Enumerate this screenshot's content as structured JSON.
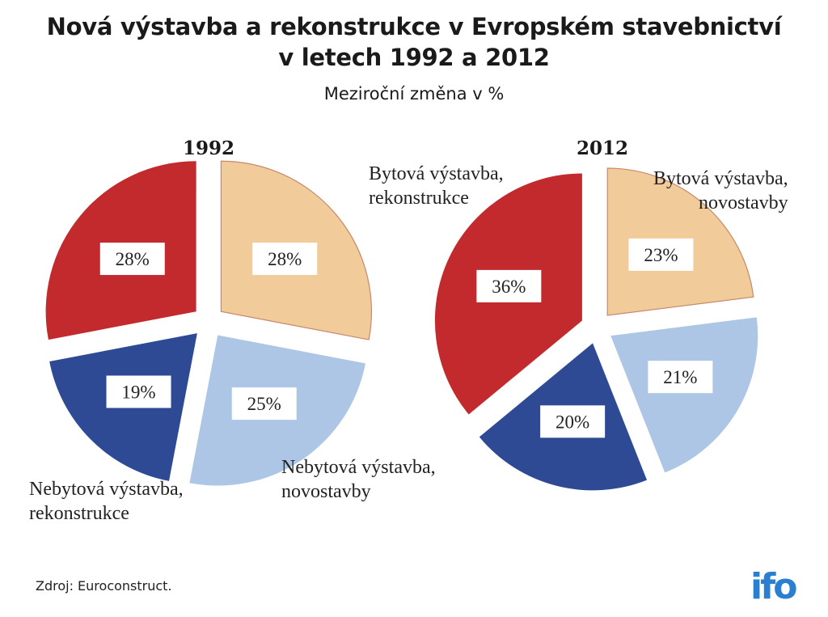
{
  "title_line1": "Nová výstavba a rekonstrukce v Evropském stavebnictví",
  "title_line2": "v letech 1992 a 2012",
  "subtitle": "Meziroční změna v %",
  "source": "Zdroj: Euroconstruct.",
  "logo": "ifo",
  "chart_data": [
    {
      "type": "pie",
      "title": "1992",
      "slices": [
        {
          "label": "Bytová výstavba, novostavby",
          "value": 28,
          "display": "28%",
          "color": "#f2cb9b"
        },
        {
          "label": "Nebytová výstavba, novostavby",
          "value": 25,
          "display": "25%",
          "color": "#aec6e6"
        },
        {
          "label": "Nebytová výstavba, rekonstrukce",
          "value": 19,
          "display": "19%",
          "color": "#2e4a94"
        },
        {
          "label": "Bytová výstavba, rekonstrukce",
          "value": 28,
          "display": "28%",
          "color": "#c22a2e"
        }
      ]
    },
    {
      "type": "pie",
      "title": "2012",
      "slices": [
        {
          "label": "Bytová výstavba, novostavby",
          "value": 23,
          "display": "23%",
          "color": "#f2cb9b"
        },
        {
          "label": "Nebytová výstavba, novostavby",
          "value": 21,
          "display": "21%",
          "color": "#aec6e6"
        },
        {
          "label": "Nebytová výstavba, rekonstrukce",
          "value": 20,
          "display": "20%",
          "color": "#2e4a94"
        },
        {
          "label": "Bytová výstavba, rekonstrukce",
          "value": 36,
          "display": "36%",
          "color": "#c22a2e"
        }
      ]
    }
  ],
  "labels": {
    "nebytova_novostavby": [
      "Nebytová výstavba,",
      "novostavby"
    ],
    "nebytova_rekonstrukce": [
      "Nebytová výstavba,",
      "rekonstrukce"
    ],
    "bytova_rekonstrukce": [
      "Bytová výstavba,",
      "rekonstrukce"
    ],
    "bytova_novostavby": [
      "Bytová výstavba,",
      "novostavby"
    ]
  }
}
